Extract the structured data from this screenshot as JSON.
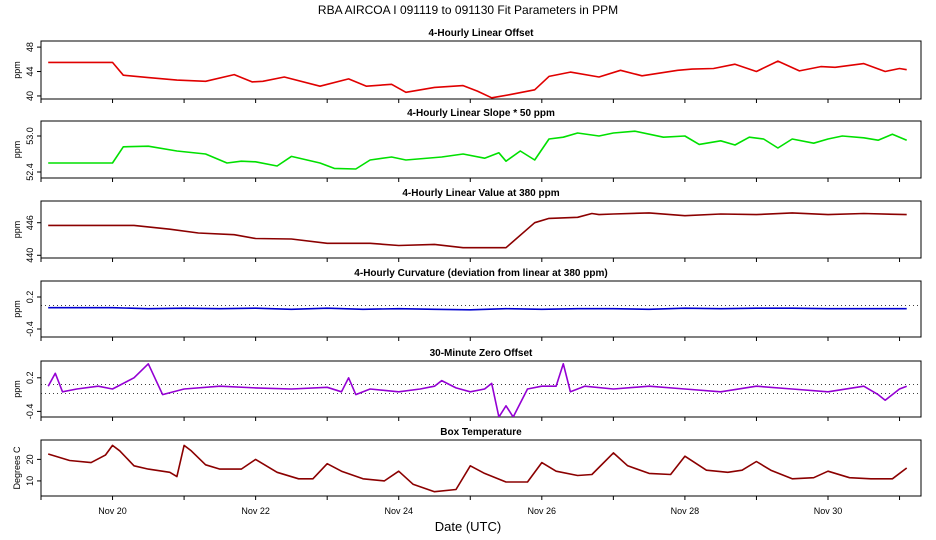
{
  "figure": {
    "title": "RBA   AIRCOA I   091119 to 091130   Fit Parameters in PPM",
    "xlabel": "Date (UTC)"
  },
  "x_axis": {
    "range": [
      19.0,
      31.3
    ],
    "tick_values": [
      20,
      22,
      24,
      26,
      28,
      30
    ],
    "tick_labels": [
      "Nov 20",
      "Nov 22",
      "Nov 24",
      "Nov 26",
      "Nov 28",
      "Nov 30"
    ],
    "minor_tick_values": [
      19,
      20,
      21,
      22,
      23,
      24,
      25,
      26,
      27,
      28,
      29,
      30,
      31
    ]
  },
  "chart_data": [
    {
      "type": "line",
      "title": "4-Hourly Linear Offset",
      "ylabel": "ppm",
      "ylim": [
        39.5,
        49
      ],
      "yticks": [
        40,
        44,
        48
      ],
      "ytick_labels": [
        "40",
        "44",
        "48"
      ],
      "color": "#e00000",
      "series": [
        {
          "name": "linear offset",
          "x": [
            19.1,
            20.0,
            20.15,
            20.5,
            20.9,
            21.3,
            21.7,
            21.95,
            22.1,
            22.4,
            22.9,
            23.3,
            23.55,
            23.9,
            24.1,
            24.5,
            24.9,
            25.1,
            25.3,
            25.55,
            25.9,
            26.1,
            26.4,
            26.8,
            27.1,
            27.4,
            27.9,
            28.1,
            28.4,
            28.7,
            29.0,
            29.3,
            29.6,
            29.9,
            30.1,
            30.5,
            30.8,
            31.0,
            31.1
          ],
          "y": [
            45.5,
            45.5,
            43.4,
            43.0,
            42.6,
            42.4,
            43.5,
            42.3,
            42.4,
            43.1,
            41.6,
            42.8,
            41.6,
            41.9,
            40.6,
            41.4,
            41.7,
            40.8,
            39.7,
            40.2,
            41.0,
            43.2,
            43.9,
            43.1,
            44.2,
            43.3,
            44.2,
            44.4,
            44.5,
            45.2,
            44.0,
            45.7,
            44.1,
            44.8,
            44.7,
            45.3,
            44.0,
            44.5,
            44.3
          ]
        }
      ]
    },
    {
      "type": "line",
      "title": "4-Hourly Linear Slope * 50 ppm",
      "ylabel": "ppm",
      "ylim": [
        52.3,
        53.25
      ],
      "yticks": [
        52.4,
        53.0
      ],
      "ytick_labels": [
        "52.4",
        "53.0"
      ],
      "color": "#00e000",
      "series": [
        {
          "name": "linear slope",
          "x": [
            19.1,
            20.0,
            20.15,
            20.5,
            20.9,
            21.3,
            21.6,
            21.8,
            22.0,
            22.3,
            22.5,
            22.9,
            23.1,
            23.4,
            23.6,
            23.9,
            24.1,
            24.6,
            24.9,
            25.2,
            25.4,
            25.5,
            25.7,
            25.9,
            26.1,
            26.3,
            26.5,
            26.8,
            27.0,
            27.3,
            27.7,
            28.0,
            28.2,
            28.5,
            28.7,
            28.9,
            29.1,
            29.3,
            29.5,
            29.8,
            30.0,
            30.2,
            30.5,
            30.7,
            30.9,
            31.1
          ],
          "y": [
            52.55,
            52.55,
            52.82,
            52.83,
            52.75,
            52.7,
            52.55,
            52.58,
            52.57,
            52.5,
            52.66,
            52.55,
            52.46,
            52.45,
            52.6,
            52.65,
            52.6,
            52.65,
            52.7,
            52.63,
            52.72,
            52.58,
            52.75,
            52.6,
            52.95,
            52.98,
            53.05,
            53.0,
            53.05,
            53.08,
            52.98,
            53.0,
            52.86,
            52.92,
            52.85,
            52.98,
            52.95,
            52.8,
            52.95,
            52.88,
            52.95,
            53.0,
            52.97,
            52.93,
            53.03,
            52.93
          ]
        }
      ]
    },
    {
      "type": "line",
      "title": "4-Hourly Linear Value at 380 ppm",
      "ylabel": "ppm",
      "ylim": [
        439.5,
        450
      ],
      "yticks": [
        440,
        446
      ],
      "ytick_labels": [
        "440",
        "446"
      ],
      "color": "#8b0000",
      "series": [
        {
          "name": "linear value",
          "x": [
            19.1,
            20.3,
            20.8,
            21.2,
            21.7,
            22.0,
            22.5,
            23.0,
            23.6,
            24.0,
            24.5,
            24.9,
            25.1,
            25.5,
            25.9,
            26.1,
            26.5,
            26.7,
            26.8,
            27.0,
            27.5,
            28.0,
            28.5,
            29.0,
            29.5,
            30.0,
            30.5,
            31.1
          ],
          "y": [
            445.5,
            445.5,
            444.8,
            444.1,
            443.8,
            443.1,
            443.0,
            442.2,
            442.2,
            441.8,
            442.0,
            441.4,
            441.4,
            441.4,
            446.0,
            446.8,
            447.0,
            447.7,
            447.5,
            447.6,
            447.8,
            447.3,
            447.6,
            447.5,
            447.8,
            447.5,
            447.7,
            447.5
          ]
        }
      ]
    },
    {
      "type": "line",
      "title": "4-Hourly Curvature (deviation from linear at 380 ppm)",
      "ylabel": "ppm",
      "ylim": [
        -0.55,
        0.5
      ],
      "yticks": [
        -0.4,
        0.2
      ],
      "ytick_labels": [
        "-0.4",
        "0.2"
      ],
      "color": "#0000d0",
      "series": [
        {
          "name": "curvature",
          "x": [
            19.1,
            20.0,
            20.5,
            21.0,
            21.5,
            22.0,
            22.5,
            23.0,
            23.5,
            24.0,
            24.5,
            25.0,
            25.5,
            26.0,
            26.5,
            27.0,
            27.5,
            28.0,
            28.5,
            29.0,
            29.5,
            30.0,
            30.5,
            31.1
          ],
          "y": [
            0.0,
            0.0,
            -0.02,
            -0.01,
            -0.02,
            -0.01,
            -0.03,
            -0.01,
            -0.03,
            -0.02,
            -0.03,
            -0.04,
            -0.02,
            -0.03,
            -0.02,
            -0.02,
            -0.03,
            -0.01,
            -0.02,
            -0.01,
            -0.01,
            -0.02,
            -0.02,
            -0.02
          ]
        }
      ],
      "reference_line": 0.04
    },
    {
      "type": "line",
      "title": "30-Minute Zero Offset",
      "ylabel": "ppm",
      "ylim": [
        -0.5,
        0.5
      ],
      "yticks": [
        -0.4,
        0.2
      ],
      "ytick_labels": [
        "-0.4",
        "0.2"
      ],
      "color": "#9400d3",
      "series": [
        {
          "name": "zero offset",
          "x": [
            19.1,
            19.2,
            19.3,
            19.5,
            19.8,
            20.0,
            20.3,
            20.5,
            20.7,
            21.0,
            21.5,
            22.0,
            22.5,
            23.0,
            23.2,
            23.3,
            23.4,
            23.6,
            24.0,
            24.3,
            24.5,
            24.6,
            24.8,
            25.0,
            25.2,
            25.3,
            25.4,
            25.5,
            25.6,
            25.8,
            26.0,
            26.2,
            26.3,
            26.4,
            26.6,
            27.0,
            27.5,
            28.0,
            28.5,
            29.0,
            29.5,
            30.0,
            30.5,
            30.7,
            30.8,
            31.0,
            31.1
          ],
          "y": [
            0.05,
            0.28,
            -0.05,
            0.0,
            0.05,
            0.0,
            0.2,
            0.45,
            -0.1,
            0.0,
            0.05,
            0.02,
            0.0,
            0.03,
            -0.05,
            0.2,
            -0.1,
            0.0,
            -0.05,
            0.0,
            0.05,
            0.15,
            0.02,
            -0.05,
            0.0,
            0.1,
            -0.5,
            -0.3,
            -0.5,
            0.0,
            0.05,
            0.05,
            0.45,
            -0.05,
            0.05,
            0.0,
            0.05,
            0.0,
            -0.05,
            0.05,
            0.0,
            -0.05,
            0.05,
            -0.1,
            -0.2,
            0.0,
            0.05
          ]
        }
      ],
      "reference_lines": [
        0.08,
        -0.08
      ]
    },
    {
      "type": "line",
      "title": "Box Temperature",
      "ylabel": "Degrees C",
      "ylim": [
        3,
        29
      ],
      "yticks": [
        10,
        20
      ],
      "ytick_labels": [
        "10",
        "20"
      ],
      "color": "#8b0000",
      "series": [
        {
          "name": "box temperature",
          "x": [
            19.1,
            19.4,
            19.7,
            19.9,
            20.0,
            20.1,
            20.3,
            20.5,
            20.8,
            20.9,
            21.0,
            21.1,
            21.3,
            21.5,
            21.8,
            22.0,
            22.3,
            22.6,
            22.8,
            23.0,
            23.2,
            23.5,
            23.8,
            24.0,
            24.2,
            24.5,
            24.8,
            25.0,
            25.2,
            25.5,
            25.8,
            26.0,
            26.2,
            26.5,
            26.7,
            27.0,
            27.2,
            27.5,
            27.8,
            28.0,
            28.3,
            28.6,
            28.8,
            29.0,
            29.2,
            29.5,
            29.8,
            30.0,
            30.3,
            30.6,
            30.9,
            31.1
          ],
          "y": [
            22.5,
            19.5,
            18.5,
            22,
            26.5,
            24,
            17,
            15.5,
            14,
            12,
            26.5,
            24,
            17.5,
            15.5,
            15.5,
            20,
            14,
            11,
            11,
            18,
            14.5,
            11,
            10,
            14.5,
            8.5,
            5,
            6,
            17,
            13.5,
            9.5,
            9.5,
            18.5,
            14.5,
            12.5,
            13,
            23,
            17,
            13.5,
            13,
            21.5,
            15,
            14,
            15,
            19,
            15,
            11,
            11.5,
            14.5,
            11.5,
            11,
            11,
            16
          ]
        }
      ]
    }
  ]
}
